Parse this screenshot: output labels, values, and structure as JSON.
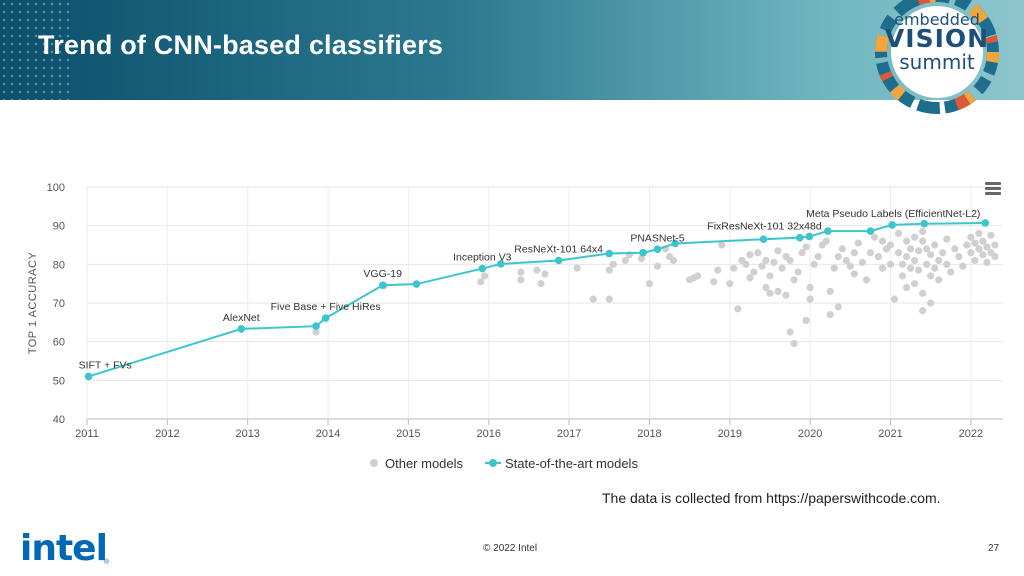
{
  "header": {
    "title": "Trend of CNN-based classifiers",
    "logo": {
      "line1": "embedded",
      "line2": "VISION",
      "line3": "summit"
    }
  },
  "footer": {
    "source_note": "The data is collected from https://paperswithcode.com.",
    "brand": "intel",
    "copyright": "© 2022 Intel",
    "page_number": "27"
  },
  "colors": {
    "accent": "#3cc6cc",
    "other_models": "#d0d0d0",
    "header_dark": "#0b4f6c",
    "intel_blue": "#0068b5"
  },
  "chart_data": {
    "type": "scatter",
    "ylabel": "TOP 1 ACCURACY",
    "xlabel": "",
    "xlim": [
      2011,
      2022.4
    ],
    "ylim": [
      40,
      100
    ],
    "xticks": [
      "2011",
      "2012",
      "2013",
      "2014",
      "2015",
      "2016",
      "2017",
      "2018",
      "2019",
      "2020",
      "2021",
      "2022"
    ],
    "yticks": [
      "40",
      "50",
      "60",
      "70",
      "80",
      "90",
      "100"
    ],
    "grid": true,
    "legend_position": "bottom",
    "series": [
      {
        "name": "Other models",
        "color": "#d0d0d0",
        "points": [
          [
            2013.85,
            62.5
          ],
          [
            2014.7,
            74.5
          ],
          [
            2015.9,
            75.5
          ],
          [
            2015.95,
            77
          ],
          [
            2016.4,
            76
          ],
          [
            2016.4,
            78
          ],
          [
            2016.6,
            78.5
          ],
          [
            2016.65,
            75
          ],
          [
            2016.7,
            77.5
          ],
          [
            2017.1,
            79
          ],
          [
            2017.3,
            71
          ],
          [
            2017.5,
            71
          ],
          [
            2017.5,
            78.5
          ],
          [
            2017.55,
            80
          ],
          [
            2017.7,
            81
          ],
          [
            2017.75,
            82.5
          ],
          [
            2017.9,
            81.5
          ],
          [
            2018.0,
            75
          ],
          [
            2018.1,
            79.5
          ],
          [
            2018.2,
            84
          ],
          [
            2018.25,
            82
          ],
          [
            2018.3,
            81
          ],
          [
            2018.5,
            76
          ],
          [
            2018.55,
            76.5
          ],
          [
            2018.6,
            77
          ],
          [
            2018.8,
            75.5
          ],
          [
            2018.85,
            78.5
          ],
          [
            2018.9,
            85
          ],
          [
            2019.0,
            75
          ],
          [
            2019.05,
            79
          ],
          [
            2019.1,
            68.5
          ],
          [
            2019.15,
            81
          ],
          [
            2019.2,
            80
          ],
          [
            2019.25,
            82.5
          ],
          [
            2019.3,
            78
          ],
          [
            2019.35,
            83
          ],
          [
            2019.4,
            79.5
          ],
          [
            2019.45,
            81
          ],
          [
            2019.5,
            77
          ],
          [
            2019.55,
            80.5
          ],
          [
            2019.6,
            83.5
          ],
          [
            2019.65,
            79
          ],
          [
            2019.7,
            82
          ],
          [
            2019.75,
            81
          ],
          [
            2019.5,
            72.5
          ],
          [
            2019.6,
            73
          ],
          [
            2019.7,
            72
          ],
          [
            2019.75,
            62.5
          ],
          [
            2019.8,
            59.5
          ],
          [
            2019.8,
            76
          ],
          [
            2019.85,
            78
          ],
          [
            2019.9,
            83
          ],
          [
            2019.95,
            84.5
          ],
          [
            2019.95,
            65.5
          ],
          [
            2020.0,
            74
          ],
          [
            2020.0,
            71
          ],
          [
            2020.05,
            80
          ],
          [
            2020.1,
            82
          ],
          [
            2020.15,
            85
          ],
          [
            2020.2,
            86
          ],
          [
            2020.25,
            73
          ],
          [
            2020.25,
            67
          ],
          [
            2020.3,
            79
          ],
          [
            2020.35,
            82
          ],
          [
            2020.4,
            84
          ],
          [
            2020.45,
            81
          ],
          [
            2020.5,
            79.5
          ],
          [
            2020.55,
            83
          ],
          [
            2020.6,
            85.5
          ],
          [
            2020.65,
            80.5
          ],
          [
            2020.7,
            76
          ],
          [
            2020.75,
            83
          ],
          [
            2020.8,
            87
          ],
          [
            2020.85,
            82
          ],
          [
            2020.9,
            79
          ],
          [
            2020.9,
            86
          ],
          [
            2020.95,
            84
          ],
          [
            2021.0,
            80
          ],
          [
            2021.0,
            85
          ],
          [
            2021.05,
            71
          ],
          [
            2021.1,
            88
          ],
          [
            2021.1,
            83
          ],
          [
            2021.15,
            80
          ],
          [
            2021.15,
            77
          ],
          [
            2021.2,
            86
          ],
          [
            2021.2,
            82
          ],
          [
            2021.25,
            79
          ],
          [
            2021.25,
            84
          ],
          [
            2021.3,
            75
          ],
          [
            2021.3,
            81
          ],
          [
            2021.35,
            83.5
          ],
          [
            2021.35,
            78.5
          ],
          [
            2021.4,
            86
          ],
          [
            2021.4,
            72.5
          ],
          [
            2021.4,
            68
          ],
          [
            2021.45,
            80
          ],
          [
            2021.45,
            84
          ],
          [
            2021.5,
            77
          ],
          [
            2021.5,
            82.5
          ],
          [
            2021.55,
            79
          ],
          [
            2021.55,
            85
          ],
          [
            2021.6,
            81
          ],
          [
            2021.6,
            76
          ],
          [
            2021.65,
            83
          ],
          [
            2021.7,
            80
          ],
          [
            2021.7,
            86.5
          ],
          [
            2021.75,
            78
          ],
          [
            2021.8,
            84
          ],
          [
            2021.85,
            82
          ],
          [
            2021.9,
            79.5
          ],
          [
            2021.95,
            85
          ],
          [
            2022.0,
            83
          ],
          [
            2022.0,
            87
          ],
          [
            2022.05,
            81
          ],
          [
            2022.05,
            85.5
          ],
          [
            2022.1,
            84
          ],
          [
            2022.1,
            88
          ],
          [
            2022.15,
            82.5
          ],
          [
            2022.15,
            86
          ],
          [
            2022.2,
            84.5
          ],
          [
            2022.2,
            80.5
          ],
          [
            2022.25,
            87.5
          ],
          [
            2022.25,
            83
          ],
          [
            2022.3,
            85
          ],
          [
            2022.3,
            82
          ],
          [
            2021.3,
            87
          ],
          [
            2021.4,
            88.5
          ],
          [
            2021.2,
            74
          ],
          [
            2021.5,
            70
          ],
          [
            2020.35,
            69
          ],
          [
            2020.55,
            77.5
          ],
          [
            2019.25,
            76.5
          ],
          [
            2019.45,
            74
          ]
        ]
      },
      {
        "name": "State-of-the-art models",
        "color": "#3cc6cc",
        "points": [
          [
            2011.02,
            51
          ],
          [
            2012.92,
            63.3
          ],
          [
            2013.85,
            64
          ],
          [
            2013.97,
            66.1
          ],
          [
            2014.68,
            74.6
          ],
          [
            2015.1,
            74.9
          ],
          [
            2015.92,
            78.9
          ],
          [
            2016.15,
            80.1
          ],
          [
            2016.87,
            81
          ],
          [
            2017.5,
            82.8
          ],
          [
            2017.92,
            83
          ],
          [
            2018.1,
            83.9
          ],
          [
            2018.32,
            85.4
          ],
          [
            2019.42,
            86.5
          ],
          [
            2019.87,
            86.9
          ],
          [
            2019.99,
            87.2
          ],
          [
            2020.22,
            88.6
          ],
          [
            2020.75,
            88.6
          ],
          [
            2021.02,
            90.2
          ],
          [
            2021.42,
            90.5
          ],
          [
            2022.18,
            90.7
          ]
        ]
      }
    ],
    "annotations": [
      {
        "label": "SIFT + FVs",
        "x": 2011.02,
        "y": 51
      },
      {
        "label": "AlexNet",
        "x": 2012.92,
        "y": 63.3
      },
      {
        "label": "Five Base + Five HiRes",
        "x": 2013.97,
        "y": 66.1
      },
      {
        "label": "VGG-19",
        "x": 2014.68,
        "y": 74.6
      },
      {
        "label": "Inception V3",
        "x": 2015.92,
        "y": 78.9
      },
      {
        "label": "ResNeXt-101 64x4",
        "x": 2016.87,
        "y": 81
      },
      {
        "label": "PNASNet-5",
        "x": 2018.1,
        "y": 83.9
      },
      {
        "label": "FixResNeXt-101 32x48d",
        "x": 2019.87,
        "y": 86.9
      },
      {
        "label": "Meta Pseudo Labels (EfficientNet-L2)",
        "x": 2021.02,
        "y": 90.2
      }
    ]
  }
}
